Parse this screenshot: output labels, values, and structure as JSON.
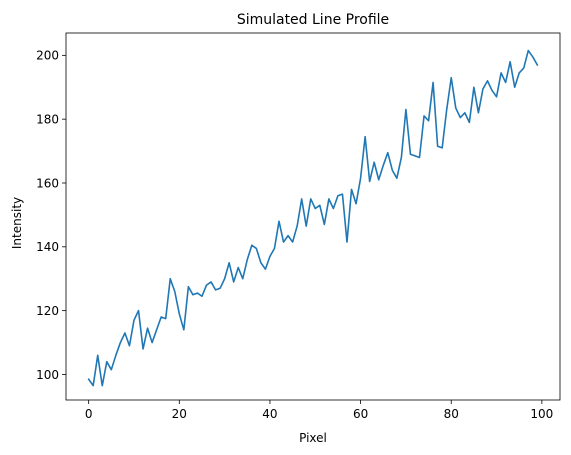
{
  "chart_data": {
    "type": "line",
    "title": "Simulated Line Profile",
    "xlabel": "Pixel",
    "ylabel": "Intensity",
    "xlim": [
      -5,
      104
    ],
    "ylim": [
      92,
      207
    ],
    "xticks": [
      0,
      20,
      40,
      60,
      80,
      100
    ],
    "yticks": [
      100,
      120,
      140,
      160,
      180,
      200
    ],
    "grid": false,
    "series": [
      {
        "color": "#1f77b4",
        "x": [
          0,
          1,
          2,
          3,
          4,
          5,
          6,
          7,
          8,
          9,
          10,
          11,
          12,
          13,
          14,
          15,
          16,
          17,
          18,
          19,
          20,
          21,
          22,
          23,
          24,
          25,
          26,
          27,
          28,
          29,
          30,
          31,
          32,
          33,
          34,
          35,
          36,
          37,
          38,
          39,
          40,
          41,
          42,
          43,
          44,
          45,
          46,
          47,
          48,
          49,
          50,
          51,
          52,
          53,
          54,
          55,
          56,
          57,
          58,
          59,
          60,
          61,
          62,
          63,
          64,
          65,
          66,
          67,
          68,
          69,
          70,
          71,
          72,
          73,
          74,
          75,
          76,
          77,
          78,
          79,
          80,
          81,
          82,
          83,
          84,
          85,
          86,
          87,
          88,
          89,
          90,
          91,
          92,
          93,
          94,
          95,
          96,
          97,
          98,
          99
        ],
        "y": [
          98.5,
          96.5,
          106,
          96.5,
          104,
          101.5,
          106,
          110,
          113,
          109,
          117,
          120,
          108,
          114.5,
          110,
          114,
          118,
          117.5,
          130,
          126,
          119,
          114,
          127.5,
          125,
          125.5,
          124.5,
          128,
          129,
          126.5,
          127,
          130,
          135,
          129,
          133.5,
          130,
          136,
          140.5,
          139.5,
          135,
          133,
          137,
          139.5,
          148,
          141.5,
          143.5,
          141.5,
          146.5,
          155,
          146.5,
          155,
          152,
          153,
          147,
          155,
          152,
          156,
          156.5,
          141.5,
          158,
          153.5,
          161.5,
          174.5,
          160.5,
          166.5,
          161,
          165.5,
          169.5,
          164,
          161.5,
          168,
          183,
          169,
          168.5,
          168,
          181,
          179.5,
          191.5,
          171.5,
          171,
          183,
          193,
          183.5,
          180.5,
          182,
          179,
          190,
          182,
          189.5,
          192,
          189,
          187,
          194.5,
          191.5,
          198,
          190,
          194.5,
          196,
          201.5,
          199.5,
          197
        ]
      }
    ]
  }
}
